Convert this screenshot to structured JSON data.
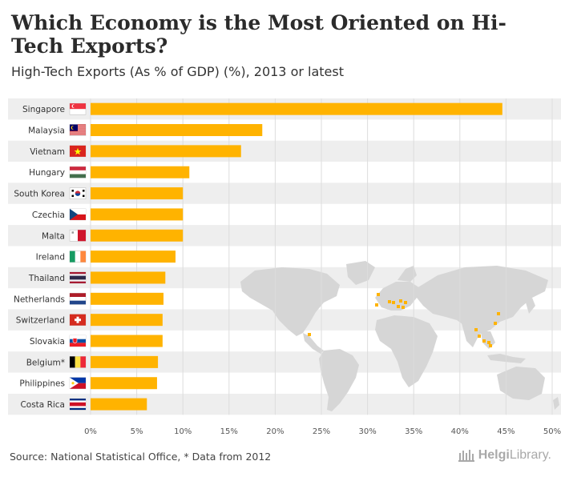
{
  "header": {
    "title": "Which Economy is the Most Oriented on Hi-Tech Exports?",
    "subtitle": "High-Tech Exports (As % of GDP) (%), 2013 or latest"
  },
  "footer": {
    "source": "Source: National Statistical Office, * Data from 2012",
    "brand_bold": "Helgi",
    "brand_light": "Library."
  },
  "colors": {
    "bar": "#FFB300",
    "band": "#EEEEEE",
    "map": "#D6D6D6",
    "map_highlight": "#FFB300",
    "grid": "#DDDDDD"
  },
  "chart_data": {
    "type": "bar",
    "orientation": "horizontal",
    "title": "Which Economy is the Most Oriented on Hi-Tech Exports?",
    "subtitle": "High-Tech Exports (As % of GDP) (%), 2013 or latest",
    "categories": [
      "Singapore",
      "Malaysia",
      "Vietnam",
      "Hungary",
      "South Korea",
      "Czechia",
      "Malta",
      "Ireland",
      "Thailand",
      "Netherlands",
      "Switzerland",
      "Slovakia",
      "Belgium*",
      "Philippines",
      "Costa Rica"
    ],
    "flags": [
      "singapore",
      "malaysia",
      "vietnam",
      "hungary",
      "south-korea",
      "czechia",
      "malta",
      "ireland",
      "thailand",
      "netherlands",
      "switzerland",
      "slovakia",
      "belgium",
      "philippines",
      "costa-rica"
    ],
    "values": [
      44.6,
      18.6,
      16.3,
      10.7,
      10.0,
      10.0,
      10.0,
      9.2,
      8.1,
      7.9,
      7.8,
      7.8,
      7.3,
      7.2,
      6.1
    ],
    "xlim": [
      0,
      50
    ],
    "xticks": [
      "0%",
      "5%",
      "10%",
      "15%",
      "20%",
      "25%",
      "30%",
      "35%",
      "40%",
      "45%",
      "50%"
    ],
    "xlabel": "",
    "ylabel": "",
    "grid": true
  }
}
